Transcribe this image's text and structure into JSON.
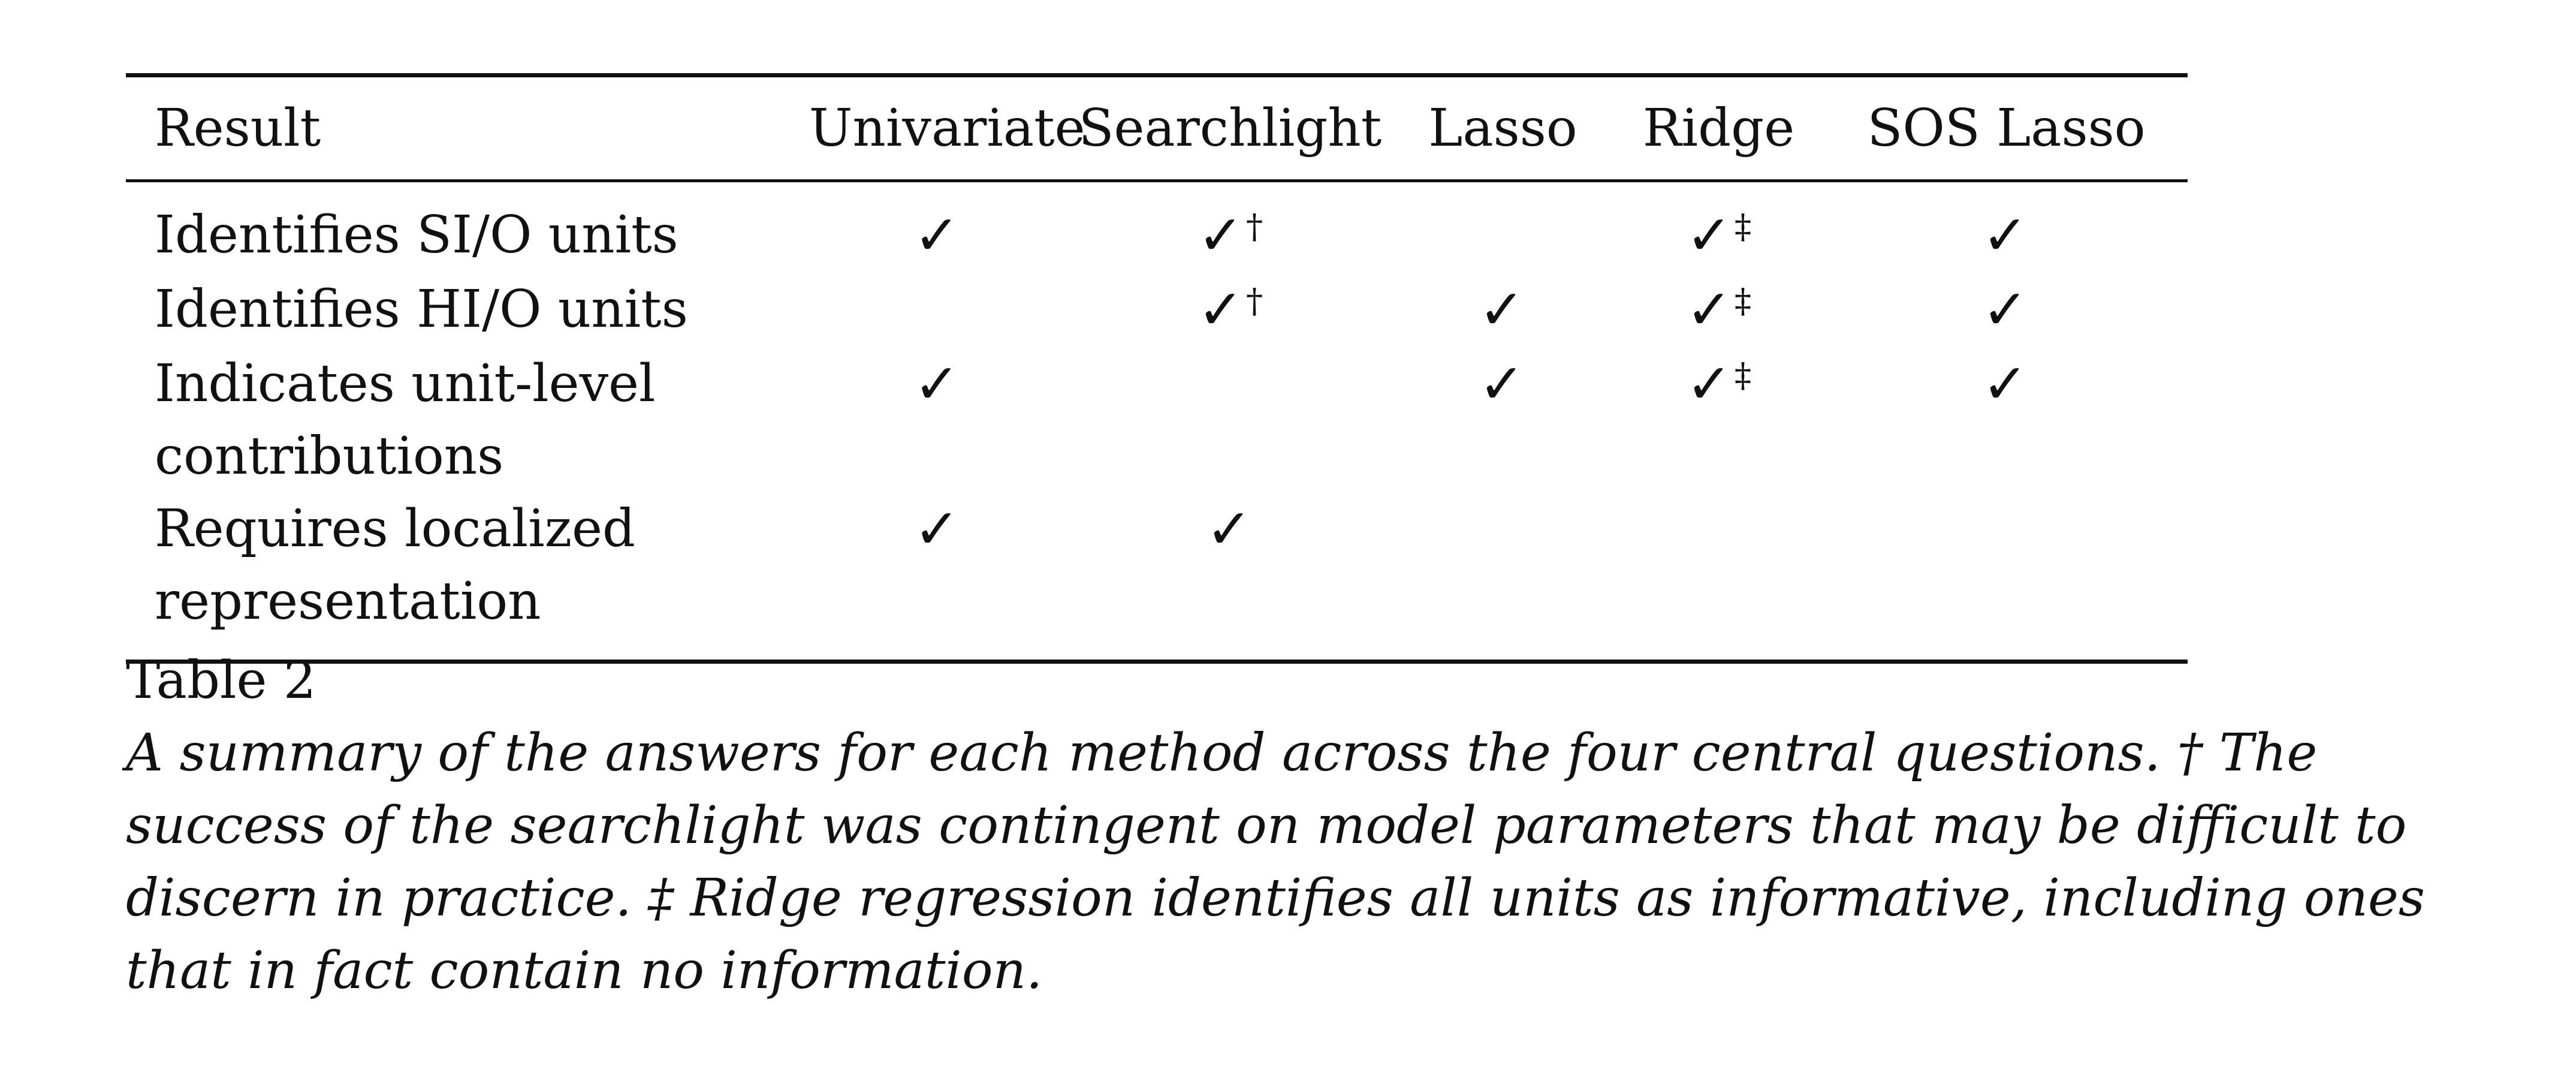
{
  "table": {
    "headers": [
      "Result",
      "Univariate",
      "Searchlight",
      "Lasso",
      "Ridge",
      "SOS Lasso"
    ],
    "rows": [
      {
        "result": "Identifies SI/O units",
        "cells": [
          {
            "check": "✓",
            "mark": ""
          },
          {
            "check": "✓",
            "mark": "†"
          },
          {
            "check": "",
            "mark": ""
          },
          {
            "check": "✓",
            "mark": "‡"
          },
          {
            "check": "✓",
            "mark": ""
          }
        ]
      },
      {
        "result": "Identifies HI/O units",
        "cells": [
          {
            "check": "",
            "mark": ""
          },
          {
            "check": "✓",
            "mark": "†"
          },
          {
            "check": "✓",
            "mark": ""
          },
          {
            "check": "✓",
            "mark": "‡"
          },
          {
            "check": "✓",
            "mark": ""
          }
        ]
      },
      {
        "result_line1": "Indicates unit-level",
        "result_line2": "contributions",
        "cells": [
          {
            "check": "✓",
            "mark": ""
          },
          {
            "check": "",
            "mark": ""
          },
          {
            "check": "✓",
            "mark": ""
          },
          {
            "check": "✓",
            "mark": "‡"
          },
          {
            "check": "✓",
            "mark": ""
          }
        ]
      },
      {
        "result_line1": "Requires localized",
        "result_line2": "representation",
        "cells": [
          {
            "check": "✓",
            "mark": ""
          },
          {
            "check": "✓",
            "mark": ""
          },
          {
            "check": "",
            "mark": ""
          },
          {
            "check": "",
            "mark": ""
          },
          {
            "check": "",
            "mark": ""
          }
        ]
      }
    ]
  },
  "caption": {
    "label": "Table 2",
    "text": "A summary of the answers for each method across the four central questions. † The success of the searchlight was contingent on model parameters that may be difficult to discern in practice. ‡ Ridge regression identifies all units as informative, including ones that in fact contain no information."
  }
}
